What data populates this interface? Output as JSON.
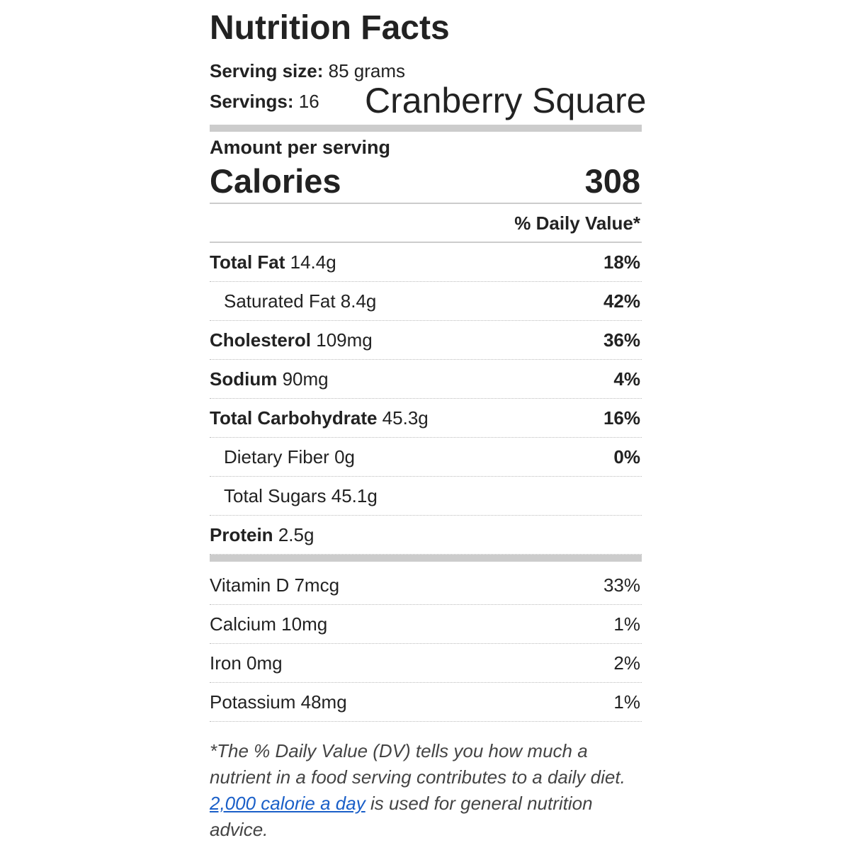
{
  "header": {
    "title": "Nutrition Facts",
    "serving_size_label": "Serving size:",
    "serving_size": "85 grams",
    "servings_label": "Servings:",
    "servings": "16",
    "recipe_name": "Cranberry Square"
  },
  "calories": {
    "amount_label": "Amount per serving",
    "label": "Calories",
    "value": "308",
    "dv_heading": "% Daily Value*"
  },
  "nutrients": [
    {
      "name": "Total Fat",
      "amount": "14.4g",
      "dv": "18%",
      "sub": [
        {
          "name": "Saturated Fat",
          "amount": "8.4g",
          "dv": "42%"
        }
      ]
    },
    {
      "name": "Cholesterol",
      "amount": "109mg",
      "dv": "36%"
    },
    {
      "name": "Sodium",
      "amount": "90mg",
      "dv": "4%"
    },
    {
      "name": "Total Carbohydrate",
      "amount": "45.3g",
      "dv": "16%",
      "sub": [
        {
          "name": "Dietary Fiber",
          "amount": "0g",
          "dv": "0%"
        },
        {
          "name": "Total Sugars",
          "amount": "45.1g"
        }
      ]
    },
    {
      "name": "Protein",
      "amount": "2.5g"
    }
  ],
  "vitamins": [
    {
      "name": "Vitamin D",
      "amount": "7mcg",
      "dv": "33%"
    },
    {
      "name": "Calcium",
      "amount": "10mg",
      "dv": "1%"
    },
    {
      "name": "Iron",
      "amount": "0mg",
      "dv": "2%"
    },
    {
      "name": "Potassium",
      "amount": "48mg",
      "dv": "1%"
    }
  ],
  "footnote": {
    "text_before": "*The % Daily Value (DV) tells you how much a nutrient in a food serving contributes to a daily diet.",
    "link": "2,000 calorie a day",
    "text_after": "is used for general nutrition advice."
  }
}
